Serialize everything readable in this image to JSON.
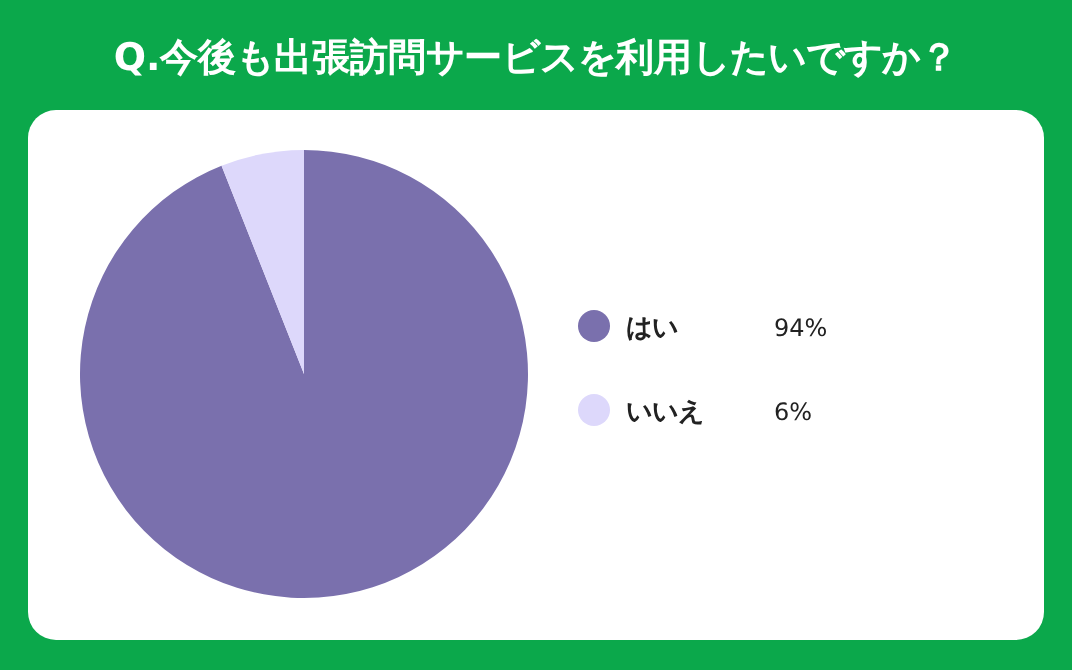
{
  "chart_data": {
    "type": "pie",
    "title": "Q.今後も出張訪問サービスを利用したいですか？",
    "categories": [
      "はい",
      "いいえ"
    ],
    "values": [
      94,
      6
    ],
    "colors": [
      "#7a70ad",
      "#ddd8fb"
    ],
    "value_labels": [
      "94%",
      "6%"
    ],
    "legend": "right"
  }
}
